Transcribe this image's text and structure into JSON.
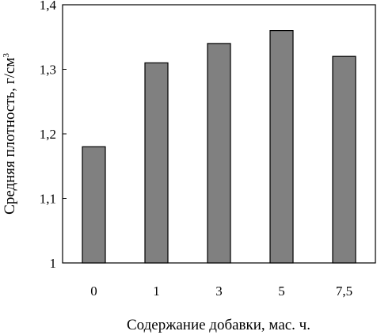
{
  "chart_data": {
    "type": "bar",
    "categories": [
      "0",
      "1",
      "3",
      "5",
      "7,5"
    ],
    "values": [
      1.18,
      1.31,
      1.34,
      1.36,
      1.32
    ],
    "xlabel": "Содержание добавки, мас. ч.",
    "ylabel": "Средняя плотность, г/см",
    "ylabel_superscript": "3",
    "ylim": [
      1,
      1.4
    ],
    "yticks": [
      1,
      1.1,
      1.2,
      1.3,
      1.4
    ],
    "ytick_labels": [
      "1",
      "1,1",
      "1,2",
      "1,3",
      "1,4"
    ],
    "grid": false,
    "legend": "none",
    "bar_color": "#808080",
    "bar_stroke": "#000000"
  }
}
